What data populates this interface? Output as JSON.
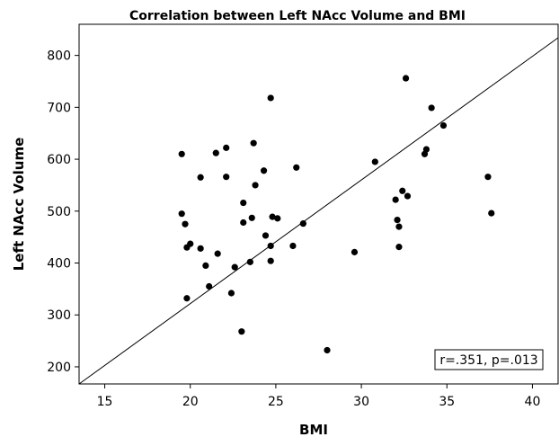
{
  "chart_data": {
    "type": "scatter",
    "title": "Correlation between Left NAcc Volume and BMI",
    "xlabel": "BMI",
    "ylabel": "Left NAcc Volume",
    "xlim": [
      13.5,
      41.5
    ],
    "ylim": [
      167,
      860
    ],
    "xticks": [
      15,
      20,
      25,
      30,
      35,
      40
    ],
    "yticks": [
      200,
      300,
      400,
      500,
      600,
      700,
      800
    ],
    "grid": false,
    "annotation": "r=.351, p=.013",
    "fit_line": {
      "x": [
        13.5,
        41.5
      ],
      "y": [
        167,
        834
      ]
    },
    "series": [
      {
        "points": [
          [
            19.5,
            610
          ],
          [
            19.5,
            495
          ],
          [
            19.7,
            475
          ],
          [
            19.8,
            430
          ],
          [
            20.0,
            437
          ],
          [
            19.8,
            332
          ],
          [
            20.6,
            565
          ],
          [
            20.6,
            428
          ],
          [
            20.9,
            395
          ],
          [
            21.1,
            355
          ],
          [
            21.5,
            612
          ],
          [
            21.6,
            418
          ],
          [
            22.1,
            622
          ],
          [
            22.1,
            566
          ],
          [
            22.4,
            342
          ],
          [
            22.6,
            392
          ],
          [
            23.0,
            268
          ],
          [
            23.1,
            516
          ],
          [
            23.1,
            478
          ],
          [
            23.5,
            402
          ],
          [
            23.6,
            487
          ],
          [
            23.7,
            631
          ],
          [
            23.8,
            550
          ],
          [
            24.3,
            578
          ],
          [
            24.4,
            453
          ],
          [
            24.7,
            718
          ],
          [
            24.7,
            433
          ],
          [
            24.7,
            404
          ],
          [
            24.8,
            489
          ],
          [
            25.1,
            486
          ],
          [
            26.0,
            433
          ],
          [
            26.2,
            584
          ],
          [
            26.6,
            476
          ],
          [
            28.0,
            232
          ],
          [
            29.6,
            421
          ],
          [
            30.8,
            595
          ],
          [
            32.0,
            522
          ],
          [
            32.1,
            483
          ],
          [
            32.2,
            431
          ],
          [
            32.2,
            470
          ],
          [
            32.4,
            539
          ],
          [
            32.6,
            756
          ],
          [
            32.7,
            529
          ],
          [
            33.7,
            610
          ],
          [
            33.8,
            619
          ],
          [
            34.1,
            699
          ],
          [
            34.8,
            665
          ],
          [
            37.4,
            566
          ],
          [
            37.6,
            496
          ]
        ]
      }
    ]
  }
}
